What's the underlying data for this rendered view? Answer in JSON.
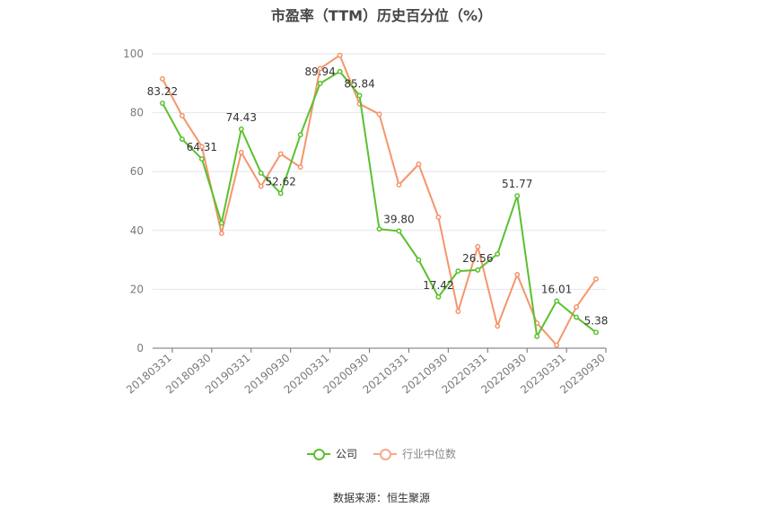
{
  "chart_data": {
    "type": "line",
    "title": "市盈率（TTM）历史百分位（%）",
    "xlabel": "",
    "ylabel": "",
    "ylim": [
      0,
      100
    ],
    "yticks": [
      0,
      20,
      40,
      60,
      80,
      100
    ],
    "categories": [
      "20180331",
      "20180630",
      "20180930",
      "20181231",
      "20190331",
      "20190630",
      "20190930",
      "20191231",
      "20200331",
      "20200630",
      "20200930",
      "20201231",
      "20210331",
      "20210630",
      "20210930",
      "20211231",
      "20220331",
      "20220630",
      "20220930",
      "20221231",
      "20230331",
      "20230630",
      "20230930"
    ],
    "x_tick_labels": [
      "20180331",
      "20180930",
      "20190331",
      "20190930",
      "20200331",
      "20200930",
      "20210331",
      "20210930",
      "20220331",
      "20220930",
      "20230331",
      "20230930"
    ],
    "series": [
      {
        "name": "公司",
        "color": "#5ac12f",
        "values": [
          83.22,
          71.0,
          64.31,
          42.5,
          74.43,
          59.5,
          52.62,
          72.5,
          89.94,
          94.0,
          85.84,
          40.5,
          39.8,
          30.0,
          17.42,
          26.2,
          26.56,
          32.0,
          51.77,
          4.0,
          16.01,
          10.5,
          5.38
        ],
        "labels": [
          "83.22",
          "",
          "64.31",
          "",
          "74.43",
          "",
          "52.62",
          "",
          "89.94",
          "",
          "85.84",
          "",
          "39.80",
          "",
          "17.42",
          "",
          "26.56",
          "",
          "51.77",
          "",
          "16.01",
          "",
          "5.38"
        ]
      },
      {
        "name": "行业中位数",
        "color": "#f5956b",
        "values": [
          91.5,
          79.0,
          68.5,
          39.0,
          66.5,
          55.0,
          66.0,
          61.5,
          95.0,
          99.5,
          83.0,
          79.5,
          55.5,
          62.5,
          44.5,
          12.5,
          34.5,
          7.5,
          25.0,
          8.5,
          1.0,
          14.0,
          23.5
        ]
      }
    ],
    "legend_position": "bottom",
    "grid": true
  },
  "source": "数据来源：恒生聚源"
}
